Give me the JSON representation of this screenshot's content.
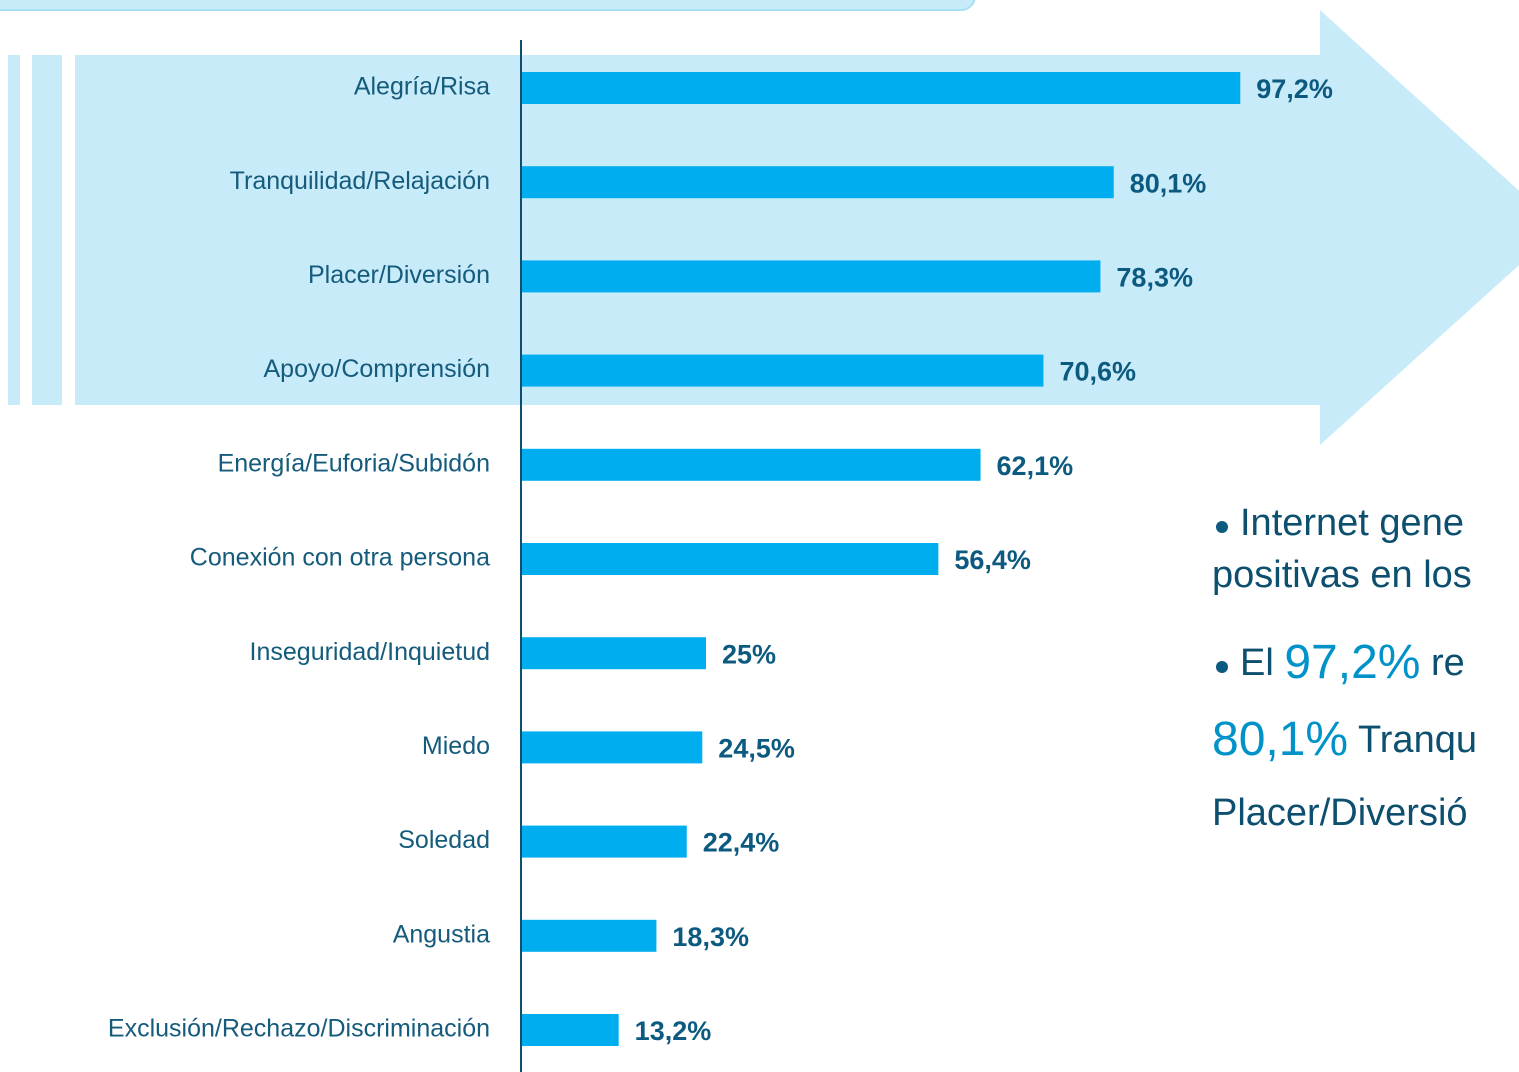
{
  "chart_data": {
    "type": "bar",
    "orientation": "horizontal",
    "categories": [
      "Alegría/Risa",
      "Tranquilidad/Relajación",
      "Placer/Diversión",
      "Apoyo/Comprensión",
      "Energía/Euforia/Subidón",
      "Conexión con otra persona",
      "Inseguridad/Inquietud",
      "Miedo",
      "Soledad",
      "Angustia",
      "Exclusión/Rechazo/Discriminación"
    ],
    "values": [
      97.2,
      80.1,
      78.3,
      70.6,
      62.1,
      56.4,
      25,
      24.5,
      22.4,
      18.3,
      13.2
    ],
    "value_labels": [
      "97,2%",
      "80,1%",
      "78,3%",
      "70,6%",
      "62,1%",
      "56,4%",
      "25%",
      "24,5%",
      "22,4%",
      "18,3%",
      "13,2%"
    ],
    "color": "#00aeef",
    "xlim": [
      0,
      100
    ],
    "notes": [
      [
        {
          "text": "Internet gene"
        }
      ],
      [
        {
          "text": "positivas en los"
        }
      ],
      [
        {
          "text": "El "
        },
        {
          "text": "97,2%",
          "highlight": true
        },
        {
          "text": " re"
        }
      ],
      [
        {
          "text": "80,1%",
          "highlight": true
        },
        {
          "text": " Tranqu"
        }
      ],
      [
        {
          "text": "Placer/Diversió"
        }
      ]
    ]
  }
}
